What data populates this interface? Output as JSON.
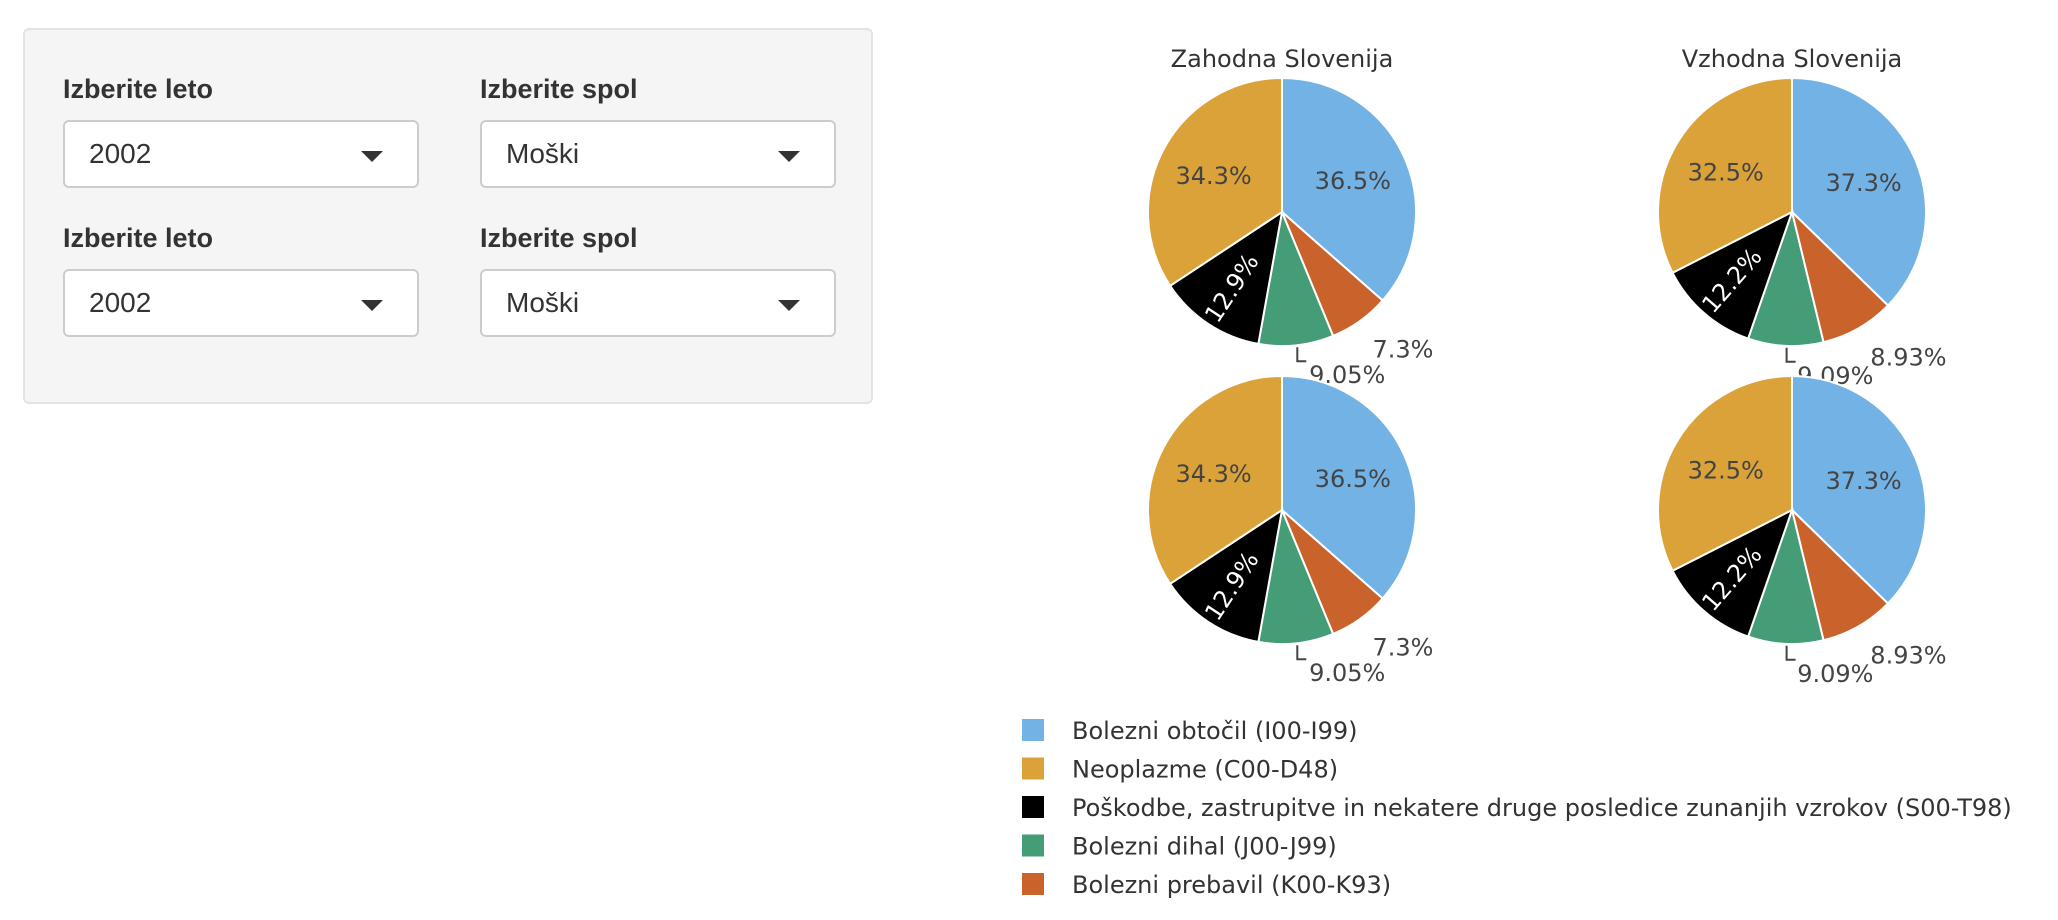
{
  "controls": [
    {
      "year_label": "Izberite leto",
      "year_value": "2002",
      "sex_label": "Izberite spol",
      "sex_value": "Moški"
    },
    {
      "year_label": "Izberite leto",
      "year_value": "2002",
      "sex_label": "Izberite spol",
      "sex_value": "Moški"
    }
  ],
  "chart_data": {
    "type": "pie",
    "legend": [
      {
        "name": "Bolezni obtočil (I00-I99)",
        "color": "#72b2e5"
      },
      {
        "name": "Neoplazme (C00-D48)",
        "color": "#dba23a"
      },
      {
        "name": "Poškodbe, zastrupitve in nekatere druge posledice zunanjih vzrokov (S00-T98)",
        "color": "#000000"
      },
      {
        "name": "Bolezni dihal (J00-J99)",
        "color": "#459d77"
      },
      {
        "name": "Bolezni prebavil (K00-K93)",
        "color": "#c9632b"
      }
    ],
    "legend_placement": "bottom",
    "pies": [
      {
        "title": "Zahodna Slovenija",
        "values": [
          36.5,
          7.3,
          9.05,
          12.9,
          34.3
        ],
        "labels": [
          "36.5%",
          "7.3%",
          "9.05%",
          "12.9%",
          "34.3%"
        ]
      },
      {
        "title": "Vzhodna Slovenija",
        "values": [
          37.3,
          8.93,
          9.09,
          12.2,
          32.5
        ],
        "labels": [
          "37.3%",
          "8.93%",
          "9.09%",
          "12.2%",
          "32.5%"
        ]
      },
      {
        "title": "",
        "values": [
          36.5,
          7.3,
          9.05,
          12.9,
          34.3
        ],
        "labels": [
          "36.5%",
          "7.3%",
          "9.05%",
          "12.9%",
          "34.3%"
        ]
      },
      {
        "title": "",
        "values": [
          37.3,
          8.93,
          9.09,
          12.2,
          32.5
        ],
        "labels": [
          "37.3%",
          "8.93%",
          "9.09%",
          "12.2%",
          "32.5%"
        ]
      }
    ],
    "slice_order": [
      "Bolezni obtočil (I00-I99)",
      "Bolezni prebavil (K00-K93)",
      "Bolezni dihal (J00-J99)",
      "Poškodbe, zastrupitve in nekatere druge posledice zunanjih vzrokov (S00-T98)",
      "Neoplazme (C00-D48)"
    ],
    "slice_colors": [
      "#72b2e5",
      "#c9632b",
      "#459d77",
      "#000000",
      "#dba23a"
    ]
  }
}
